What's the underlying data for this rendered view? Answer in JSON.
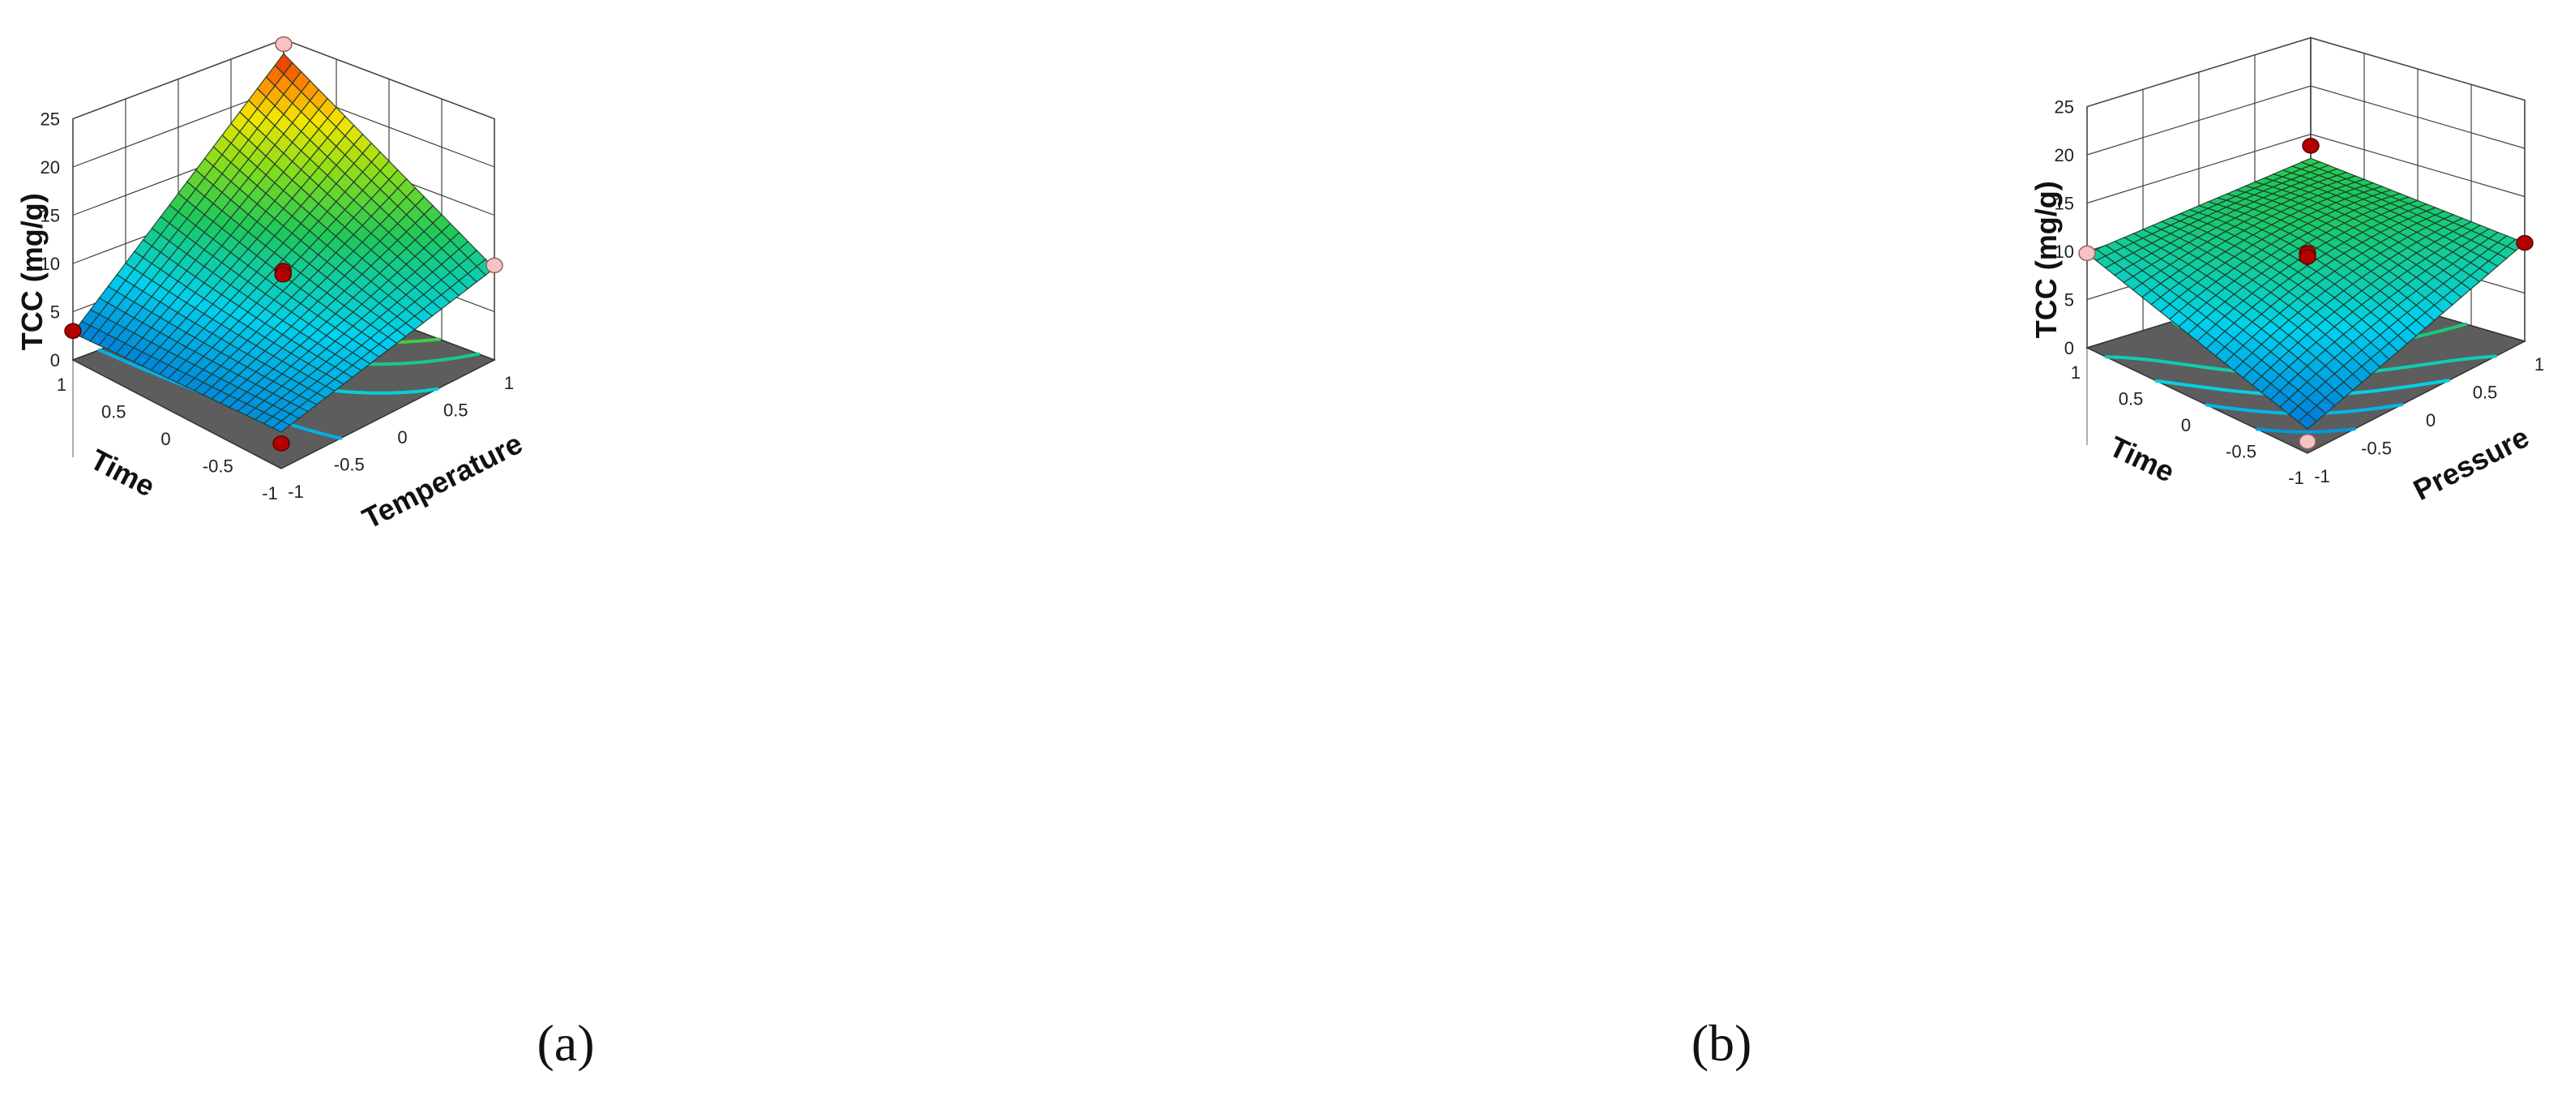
{
  "chart_data": [
    {
      "type": "surface3d",
      "panel_label": "(a)",
      "xlabel": "Temperature",
      "ylabel": "Time",
      "zlabel": "TCC (mg/g)",
      "x_ticks": [
        "-1",
        "-0.5",
        "0",
        "0.5",
        "1"
      ],
      "y_ticks": [
        "-1",
        "-0.5",
        "0",
        "0.5",
        "1"
      ],
      "z_ticks": [
        "0",
        "5",
        "10",
        "15",
        "20",
        "25"
      ],
      "xlim": [
        -1,
        1
      ],
      "ylim": [
        -1,
        1
      ],
      "zlim": [
        0,
        25
      ],
      "grid": true,
      "surface_corners": [
        {
          "x": -1,
          "y": -1,
          "z": 3.8
        },
        {
          "x": 1,
          "y": -1,
          "z": 9.5
        },
        {
          "x": -1,
          "y": 1,
          "z": 2.8
        },
        {
          "x": 1,
          "y": 1,
          "z": 23.5
        }
      ],
      "surface_center": {
        "x": 0,
        "y": 0,
        "z": 9.5
      },
      "design_points": [
        {
          "x": -1,
          "y": 1,
          "z": 3.0,
          "marker": "dark-red"
        },
        {
          "x": -1,
          "y": -1,
          "z": 2.6,
          "marker": "dark-red"
        },
        {
          "x": 1,
          "y": 1,
          "z": 24.5,
          "marker": "pink"
        },
        {
          "x": 1,
          "y": -1,
          "z": 9.8,
          "marker": "pink"
        },
        {
          "x": 0,
          "y": 0,
          "z": 10.0,
          "marker": "dark-red"
        },
        {
          "x": 0,
          "y": 0,
          "z": 9.6,
          "marker": "dark-red"
        }
      ],
      "contour_lines": 7
    },
    {
      "type": "surface3d",
      "panel_label": "(b)",
      "xlabel": "Pressure",
      "ylabel": "Time",
      "zlabel": "TCC (mg/g)",
      "x_ticks": [
        "-1",
        "-0.5",
        "0",
        "0.5",
        "1"
      ],
      "y_ticks": [
        "-1",
        "-0.5",
        "0",
        "0.5",
        "1"
      ],
      "z_ticks": [
        "0",
        "5",
        "10",
        "15",
        "20",
        "25"
      ],
      "xlim": [
        -1,
        1
      ],
      "ylim": [
        -1,
        1
      ],
      "zlim": [
        0,
        25
      ],
      "grid": true,
      "surface_corners": [
        {
          "x": -1,
          "y": -1,
          "z": 2.5
        },
        {
          "x": 1,
          "y": -1,
          "z": 10.2
        },
        {
          "x": -1,
          "y": 1,
          "z": 9.8
        },
        {
          "x": 1,
          "y": 1,
          "z": 12.5
        }
      ],
      "surface_center": {
        "x": 0,
        "y": 0,
        "z": 10.5
      },
      "design_points": [
        {
          "x": -1,
          "y": -1,
          "z": 1.2,
          "marker": "pink"
        },
        {
          "x": 1,
          "y": 1,
          "z": 13.8,
          "marker": "dark-red"
        },
        {
          "x": 1,
          "y": -1,
          "z": 10.2,
          "marker": "dark-red"
        },
        {
          "x": -1,
          "y": 1,
          "z": 9.8,
          "marker": "pink"
        },
        {
          "x": 0,
          "y": 0,
          "z": 10.6,
          "marker": "dark-red"
        },
        {
          "x": 0,
          "y": 0,
          "z": 10.2,
          "marker": "dark-red"
        }
      ],
      "contour_lines": 5
    }
  ],
  "colors": {
    "floor": "#5d5d5d",
    "wall_grid": "#444444",
    "mesh_line": "#1e3a2c",
    "marker_dark": "#b30000",
    "marker_pink": "#f4c4c4"
  }
}
